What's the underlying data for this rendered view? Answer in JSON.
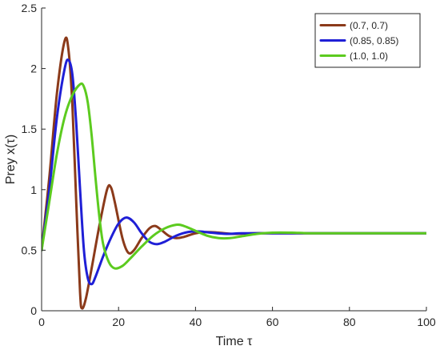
{
  "chart_data": {
    "type": "line",
    "title": "",
    "xlabel": "Time τ",
    "ylabel": "Prey x(τ)",
    "xlim": [
      0,
      100
    ],
    "ylim": [
      0,
      2.5
    ],
    "x_ticks": [
      0,
      20,
      40,
      60,
      80,
      100
    ],
    "y_ticks": [
      0,
      0.5,
      1,
      1.5,
      2,
      2.5
    ],
    "x_tick_labels": [
      "0",
      "20",
      "40",
      "60",
      "80",
      "100"
    ],
    "y_tick_labels": [
      "0",
      "0.5",
      "1",
      "1.5",
      "2",
      "2.5"
    ],
    "grid": false,
    "legend_position": "top-right",
    "series": [
      {
        "name": "(0.7, 0.7)",
        "color": "#8B3A1A",
        "points": [
          [
            0,
            0.5
          ],
          [
            2,
            1.1
          ],
          [
            4,
            1.8
          ],
          [
            6,
            2.23
          ],
          [
            7,
            2.15
          ],
          [
            8,
            1.7
          ],
          [
            9,
            0.9
          ],
          [
            10,
            0.15
          ],
          [
            10.5,
            0.02
          ],
          [
            11.5,
            0.1
          ],
          [
            13,
            0.35
          ],
          [
            15,
            0.7
          ],
          [
            17,
            1.0
          ],
          [
            18,
            1.02
          ],
          [
            19,
            0.9
          ],
          [
            21,
            0.6
          ],
          [
            22.5,
            0.48
          ],
          [
            24,
            0.5
          ],
          [
            26,
            0.6
          ],
          [
            28,
            0.68
          ],
          [
            29.5,
            0.7
          ],
          [
            31,
            0.67
          ],
          [
            33,
            0.62
          ],
          [
            35,
            0.6
          ],
          [
            37,
            0.61
          ],
          [
            40,
            0.64
          ],
          [
            43,
            0.65
          ],
          [
            46,
            0.645
          ],
          [
            50,
            0.635
          ],
          [
            55,
            0.64
          ],
          [
            60,
            0.64
          ],
          [
            70,
            0.64
          ],
          [
            80,
            0.64
          ],
          [
            90,
            0.64
          ],
          [
            100,
            0.64
          ]
        ]
      },
      {
        "name": "(0.85, 0.85)",
        "color": "#1F1FD6",
        "points": [
          [
            0,
            0.5
          ],
          [
            2,
            1.0
          ],
          [
            4,
            1.6
          ],
          [
            6,
            2.0
          ],
          [
            7,
            2.07
          ],
          [
            8,
            1.95
          ],
          [
            9,
            1.55
          ],
          [
            10,
            1.0
          ],
          [
            11,
            0.5
          ],
          [
            12,
            0.27
          ],
          [
            13,
            0.22
          ],
          [
            14,
            0.28
          ],
          [
            16,
            0.45
          ],
          [
            18,
            0.6
          ],
          [
            20,
            0.72
          ],
          [
            22,
            0.77
          ],
          [
            24,
            0.73
          ],
          [
            26,
            0.64
          ],
          [
            28,
            0.57
          ],
          [
            30,
            0.55
          ],
          [
            32,
            0.57
          ],
          [
            35,
            0.62
          ],
          [
            38,
            0.65
          ],
          [
            41,
            0.655
          ],
          [
            44,
            0.645
          ],
          [
            48,
            0.635
          ],
          [
            52,
            0.64
          ],
          [
            60,
            0.64
          ],
          [
            70,
            0.64
          ],
          [
            80,
            0.64
          ],
          [
            90,
            0.64
          ],
          [
            100,
            0.64
          ]
        ]
      },
      {
        "name": "(1.0, 1.0)",
        "color": "#5CCB1F",
        "points": [
          [
            0,
            0.5
          ],
          [
            2,
            0.9
          ],
          [
            4,
            1.3
          ],
          [
            6,
            1.6
          ],
          [
            8,
            1.78
          ],
          [
            10,
            1.87
          ],
          [
            11,
            1.85
          ],
          [
            12,
            1.72
          ],
          [
            13,
            1.45
          ],
          [
            14,
            1.1
          ],
          [
            15,
            0.78
          ],
          [
            16,
            0.55
          ],
          [
            17.5,
            0.4
          ],
          [
            19,
            0.35
          ],
          [
            21,
            0.37
          ],
          [
            23,
            0.43
          ],
          [
            26,
            0.53
          ],
          [
            29,
            0.62
          ],
          [
            32,
            0.68
          ],
          [
            35,
            0.71
          ],
          [
            37,
            0.7
          ],
          [
            40,
            0.66
          ],
          [
            43,
            0.62
          ],
          [
            46,
            0.6
          ],
          [
            49,
            0.6
          ],
          [
            52,
            0.615
          ],
          [
            56,
            0.635
          ],
          [
            60,
            0.645
          ],
          [
            65,
            0.645
          ],
          [
            70,
            0.64
          ],
          [
            80,
            0.64
          ],
          [
            90,
            0.64
          ],
          [
            100,
            0.64
          ]
        ]
      }
    ]
  }
}
